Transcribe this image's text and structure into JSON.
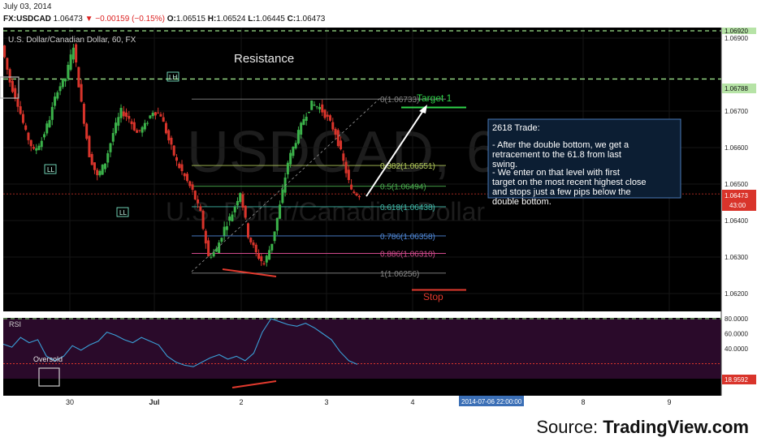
{
  "header": {
    "date": "July 03, 2014",
    "symbol": "FX:USDCAD",
    "last": "1.06473",
    "change": "−0.00159 (−0.15%)",
    "open_label": "O:",
    "open": "1.06515",
    "high_label": "H:",
    "high": "1.06524",
    "low_label": "L:",
    "low": "1.06445",
    "close_label": "C:",
    "close": "1.06473"
  },
  "chart": {
    "title": "U.S. Dollar/Canadian Dollar, 60, FX",
    "watermark_symbol": "USDCAD, 60",
    "watermark_name": "U.S. Dollar/Canadian Dollar",
    "resistance_label": "Resistance",
    "target_label": "Target 1",
    "stop_label": "Stop",
    "swing_labels": [
      "LH",
      "LL",
      "LL"
    ],
    "current_price": "1.06473",
    "countdown": "43:00",
    "resistance_price": "1.06788",
    "top_price": "1.06920",
    "note": {
      "title": "2618 Trade:",
      "p1": "- After the double bottom, we get a retracement to the 61.8 from last swing.",
      "p2": "- We enter on that level with first target on the most recent highest close and stops just a few pips below the double bottom."
    },
    "colors": {
      "bg": "#000000",
      "up": "#3bb24a",
      "down": "#d9342b",
      "resistance": "#9be38a",
      "current": "#d9342b",
      "rsi_line": "#3aa0d8",
      "rsi_bg": "#2a0a2a"
    }
  },
  "chart_data": {
    "type": "candlestick",
    "symbol": "FX:USDCAD",
    "interval": "60",
    "y_axis": {
      "ticks": [
        1.062,
        1.063,
        1.064,
        1.065,
        1.066,
        1.067,
        1.069
      ],
      "tick_labels": [
        "1.06200",
        "1.06300",
        "1.06400",
        "1.06500",
        "1.06600",
        "1.06700",
        "1.06900"
      ],
      "range": [
        1.0614,
        1.0696
      ]
    },
    "x_axis": {
      "tick_labels": [
        "30",
        "Jul",
        "2",
        "3",
        "4",
        "8",
        "9"
      ],
      "cursor_label": "2014-07-06 22:00:00"
    },
    "close_path": [
      1.0688,
      1.0678,
      1.0672,
      1.0664,
      1.0659,
      1.0662,
      1.0668,
      1.0676,
      1.0679,
      1.0688,
      1.0672,
      1.0658,
      1.0652,
      1.0656,
      1.0664,
      1.067,
      1.0668,
      1.0664,
      1.0666,
      1.067,
      1.0669,
      1.0662,
      1.0656,
      1.0652,
      1.0648,
      1.0642,
      1.063,
      1.0632,
      1.0638,
      1.0642,
      1.0648,
      1.0636,
      1.0631,
      1.0628,
      1.0634,
      1.0644,
      1.0656,
      1.0662,
      1.0668,
      1.0672,
      1.0671,
      1.0668,
      1.0664,
      1.0656,
      1.0648,
      1.0647
    ],
    "fibonacci": {
      "levels": [
        {
          "ratio": "0",
          "price": 1.06733,
          "label": "0(1.06733)",
          "color": "#888888"
        },
        {
          "ratio": "0.382",
          "price": 1.06551,
          "label": "0.382(1.06551)",
          "color": "#b0c85a"
        },
        {
          "ratio": "0.5",
          "price": 1.06494,
          "label": "0.5(1.06494)",
          "color": "#4caf50"
        },
        {
          "ratio": "0.618",
          "price": 1.06438,
          "label": "0.618(1.06438)",
          "color": "#3fb8a8"
        },
        {
          "ratio": "0.786",
          "price": 1.06358,
          "label": "0.786(1.06358)",
          "color": "#4f88d8"
        },
        {
          "ratio": "0.886",
          "price": 1.0631,
          "label": "0.886(1.06310)",
          "color": "#d04a8c"
        },
        {
          "ratio": "1",
          "price": 1.06256,
          "label": "1(1.06256)",
          "color": "#888888"
        }
      ]
    },
    "horizontal_lines": {
      "resistance": 1.06788,
      "top": 1.0692,
      "current": 1.06473,
      "target": 1.0671,
      "stop": 1.0621
    },
    "rsi": {
      "label": "RSI",
      "ticks": [
        80,
        60,
        40
      ],
      "tick_labels": [
        "80.0000",
        "60.0000",
        "40.0000"
      ],
      "current": "18.9592",
      "oversold_label": "Oversold",
      "range": [
        0,
        100
      ],
      "values": [
        46,
        42,
        55,
        48,
        52,
        30,
        24,
        30,
        44,
        38,
        45,
        50,
        62,
        58,
        52,
        48,
        55,
        50,
        45,
        30,
        22,
        18,
        16,
        22,
        28,
        32,
        26,
        30,
        24,
        34,
        62,
        80,
        76,
        72,
        70,
        74,
        68,
        60,
        52,
        36,
        24,
        19
      ]
    }
  }
}
